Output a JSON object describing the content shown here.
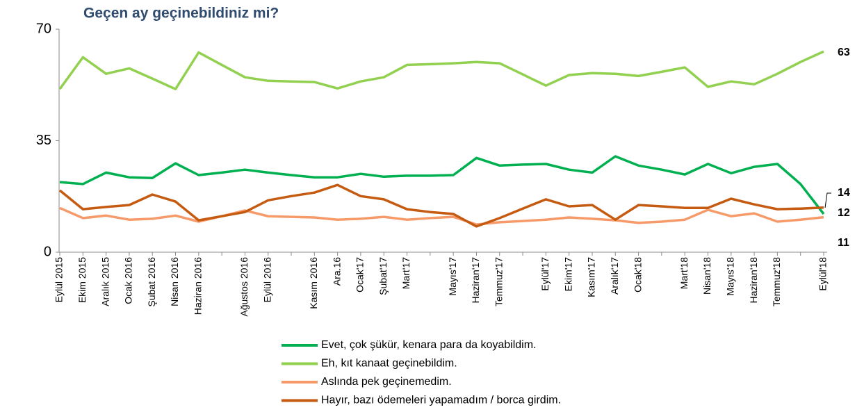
{
  "chart_data": {
    "type": "line",
    "title": "Geçen ay geçinebildiniz mi?",
    "categories": [
      "Eylül 2015",
      "Ekim 2015",
      "Aralık 2015",
      "Ocak 2016",
      "Şubat 2016",
      "Nisan 2016",
      "Haziran 2016",
      null,
      "Ağustos 2016",
      "Eylül 2016",
      null,
      "Kasım 2016",
      "Ara.16",
      "Ocak'17",
      "Şubat'17",
      "Mart'17",
      null,
      "Mayıs'17",
      "Haziran'17",
      "Temmuz'17",
      null,
      "Eylül'17",
      "Ekim'17",
      "Kasım'17",
      "Aralık'17",
      "Ocak'18",
      null,
      "Mart'18",
      "Nisan'18",
      "Mayıs'18",
      "Haziran'18",
      "Temmuz'18",
      null,
      "Eylül'18"
    ],
    "series": [
      {
        "name": "Evet, çok şükür, kenara para da koyabildim.",
        "color": "#00b050",
        "values": [
          22,
          21.4,
          25,
          23.5,
          23.3,
          27.9,
          24.2,
          25,
          25.9,
          25,
          24.2,
          23.5,
          23.5,
          24.6,
          23.7,
          24,
          24,
          24.2,
          29.6,
          27.2,
          27.5,
          27.7,
          25.9,
          25,
          30.1,
          27.2,
          25.9,
          24.4,
          27.7,
          24.8,
          26.8,
          27.7,
          21.4,
          12
        ]
      },
      {
        "name": "Eh, kıt kanaat geçinebildim.",
        "color": "#92d050",
        "values": [
          51.2,
          61.2,
          56,
          57.7,
          54.5,
          51.2,
          62.7,
          58.8,
          54.9,
          53.8,
          53.6,
          53.4,
          51.4,
          53.6,
          54.9,
          58.8,
          59,
          59.3,
          59.7,
          59.3,
          55.8,
          52.3,
          55.6,
          56.2,
          56,
          55.3,
          56.6,
          58,
          51.9,
          53.6,
          52.7,
          56,
          59.7,
          63
        ]
      },
      {
        "name": "Aslında pek geçinemedim.",
        "color": "#f79a6a",
        "values": [
          13.9,
          10.7,
          11.5,
          10.2,
          10.5,
          11.5,
          9.6,
          11.3,
          13.1,
          11.3,
          11.1,
          10.9,
          10.2,
          10.5,
          11.1,
          10.2,
          10.7,
          11.1,
          8.7,
          9.4,
          9.8,
          10.2,
          10.9,
          10.5,
          10,
          9.2,
          9.6,
          10.2,
          13.3,
          11.3,
          12.2,
          9.6,
          10.2,
          11
        ]
      },
      {
        "name": "Hayır, bazı ödemeleri yapamadım / borca girdim.",
        "color": "#c55a11",
        "values": [
          19.4,
          13.5,
          14.2,
          14.8,
          18.1,
          15.9,
          10,
          11.3,
          12.6,
          16.3,
          17.6,
          18.7,
          21.1,
          17.6,
          16.6,
          13.5,
          12.6,
          12,
          8.1,
          10.7,
          13.7,
          16.6,
          14.4,
          14.8,
          10.2,
          14.8,
          14.4,
          13.9,
          13.9,
          16.8,
          15,
          13.5,
          13.7,
          14
        ]
      }
    ],
    "ylim": [
      0,
      70
    ],
    "yticks": [
      0,
      35,
      70
    ]
  }
}
